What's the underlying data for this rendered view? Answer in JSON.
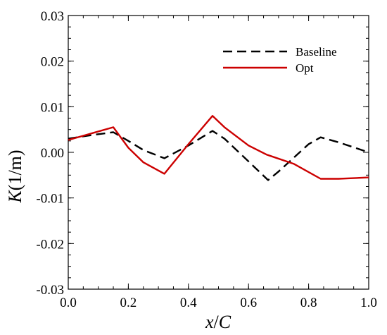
{
  "chart_data": {
    "type": "line",
    "title": "",
    "xlabel_var": "x",
    "xlabel_sep": "/",
    "xlabel_den": "C",
    "ylabel_var": "K",
    "ylabel_unit": "(1/m)",
    "xlim": [
      0.0,
      1.0
    ],
    "ylim": [
      -0.03,
      0.03
    ],
    "x_ticks": [
      0.0,
      0.2,
      0.4,
      0.6,
      0.8,
      1.0
    ],
    "x_tick_labels": [
      "0.0",
      "0.2",
      "0.4",
      "0.6",
      "0.8",
      "1.0"
    ],
    "y_ticks": [
      -0.03,
      -0.02,
      -0.01,
      0.0,
      0.01,
      0.02,
      0.03
    ],
    "y_tick_labels": [
      "-0.03",
      "-0.02",
      "-0.01",
      "0.00",
      "0.01",
      "0.02",
      "0.03"
    ],
    "grid": false,
    "legend_position": "top-right",
    "series": [
      {
        "name": "Baseline",
        "style": "dashed",
        "color": "#000000",
        "points": [
          [
            0.0,
            0.003
          ],
          [
            0.08,
            0.0038
          ],
          [
            0.15,
            0.0044
          ],
          [
            0.2,
            0.0025
          ],
          [
            0.25,
            0.0005
          ],
          [
            0.32,
            -0.0013
          ],
          [
            0.4,
            0.0015
          ],
          [
            0.48,
            0.0047
          ],
          [
            0.52,
            0.003
          ],
          [
            0.6,
            -0.002
          ],
          [
            0.665,
            -0.0061
          ],
          [
            0.7,
            -0.0042
          ],
          [
            0.75,
            -0.0012
          ],
          [
            0.8,
            0.0018
          ],
          [
            0.84,
            0.0033
          ],
          [
            0.9,
            0.0022
          ],
          [
            1.0,
            0.0
          ]
        ]
      },
      {
        "name": "Opt",
        "style": "solid",
        "color": "#cc0000",
        "points": [
          [
            0.0,
            0.0027
          ],
          [
            0.08,
            0.0042
          ],
          [
            0.15,
            0.0055
          ],
          [
            0.2,
            0.001
          ],
          [
            0.25,
            -0.0022
          ],
          [
            0.32,
            -0.0047
          ],
          [
            0.4,
            0.0018
          ],
          [
            0.48,
            0.008
          ],
          [
            0.52,
            0.0055
          ],
          [
            0.6,
            0.0015
          ],
          [
            0.66,
            -0.0005
          ],
          [
            0.75,
            -0.0025
          ],
          [
            0.84,
            -0.0058
          ],
          [
            0.9,
            -0.0058
          ],
          [
            1.0,
            -0.0055
          ]
        ]
      }
    ]
  }
}
